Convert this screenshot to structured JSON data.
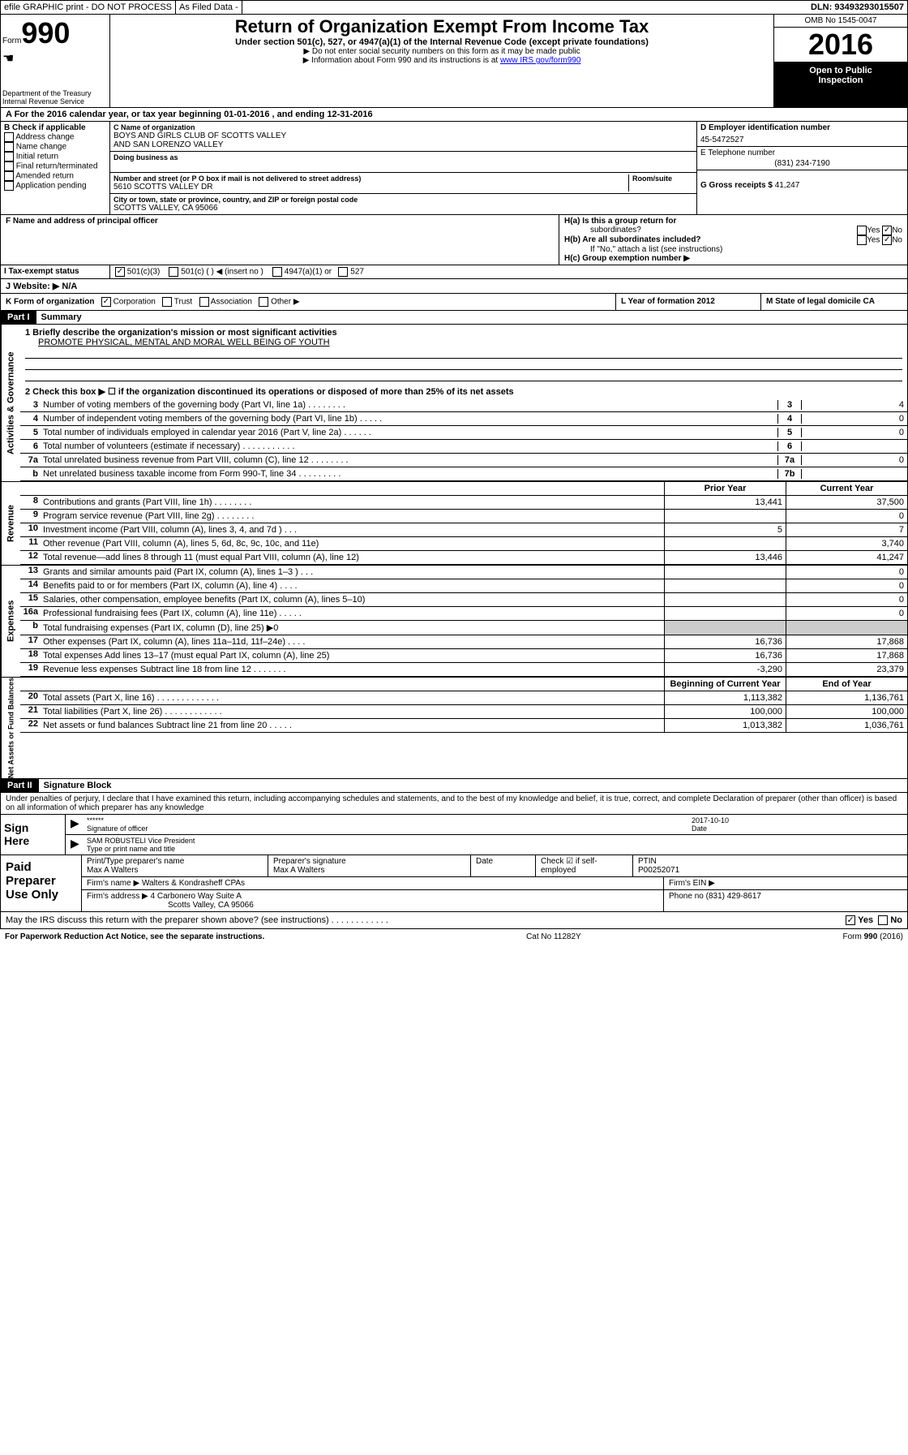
{
  "header": {
    "efile": "efile GRAPHIC print - DO NOT PROCESS",
    "as_filed": "As Filed Data -",
    "dln_label": "DLN:",
    "dln": "93493293015507"
  },
  "form": {
    "form_word": "Form",
    "number": "990",
    "dept1": "Department of the Treasury",
    "dept2": "Internal Revenue Service"
  },
  "title": {
    "main": "Return of Organization Exempt From Income Tax",
    "sub": "Under section 501(c), 527, or 4947(a)(1) of the Internal Revenue Code (except private foundations)",
    "note1": "▶ Do not enter social security numbers on this form as it may be made public",
    "note2": "▶ Information about Form 990 and its instructions is at ",
    "link": "www IRS gov/form990"
  },
  "year_box": {
    "omb": "OMB No 1545-0047",
    "year": "2016",
    "inspect1": "Open to Public",
    "inspect2": "Inspection"
  },
  "sec_a": "A   For the 2016 calendar year, or tax year beginning 01-01-2016   , and ending 12-31-2016",
  "col_b": {
    "title": "B Check if applicable",
    "items": [
      "Address change",
      "Name change",
      "Initial return",
      "Final return/terminated",
      "Amended return",
      "Application pending"
    ]
  },
  "col_c": {
    "name_lbl": "C Name of organization",
    "name1": "BOYS AND GIRLS CLUB OF SCOTTS VALLEY",
    "name2": "AND SAN LORENZO VALLEY",
    "dba_lbl": "Doing business as",
    "addr_lbl": "Number and street (or P O  box if mail is not delivered to street address)",
    "room_lbl": "Room/suite",
    "addr": "5610 SCOTTS VALLEY DR",
    "city_lbl": "City or town, state or province, country, and ZIP or foreign postal code",
    "city": "SCOTTS VALLEY, CA  95066"
  },
  "col_d": {
    "ein_lbl": "D Employer identification number",
    "ein": "45-5472527",
    "tel_lbl": "E Telephone number",
    "tel": "(831) 234-7190",
    "gross_lbl": "G Gross receipts $",
    "gross": "41,247"
  },
  "sec_f": "F   Name and address of principal officer",
  "sec_h": {
    "ha": "H(a)  Is this a group return for",
    "ha2": "subordinates?",
    "hb": "H(b)  Are all subordinates included?",
    "hnote": "If \"No,\" attach a list  (see instructions)",
    "hc": "H(c)  Group exemption number ▶",
    "yes": "Yes",
    "no": "No"
  },
  "sec_i": {
    "lbl": "I   Tax-exempt status",
    "opts": [
      "501(c)(3)",
      "501(c) (  ) ◀ (insert no )",
      "4947(a)(1) or",
      "527"
    ]
  },
  "sec_j": "J   Website: ▶  N/A",
  "sec_k": {
    "lbl": "K Form of organization",
    "opts": [
      "Corporation",
      "Trust",
      "Association",
      "Other ▶"
    ]
  },
  "sec_l": "L Year of formation  2012",
  "sec_m": "M State of legal domicile  CA",
  "part1": {
    "inv": "Part I",
    "title": "Summary"
  },
  "p1_1_lbl": "1  Briefly describe the organization's mission or most significant activities",
  "p1_1_txt": "PROMOTE PHYSICAL, MENTAL AND MORAL WELL BEING OF YOUTH",
  "p1_2": "2   Check this box ▶ ☐  if the organization discontinued its operations or disposed of more than 25% of its net assets",
  "sidebar_gov": "Activities & Governance",
  "sidebar_rev": "Revenue",
  "sidebar_exp": "Expenses",
  "sidebar_net": "Net Assets or Fund Balances",
  "gov_rows": [
    {
      "n": "3",
      "t": "Number of voting members of the governing body (Part VI, line 1a)  .    .    .    .    .    .    .    .",
      "b": "3",
      "v": "4"
    },
    {
      "n": "4",
      "t": "Number of independent voting members of the governing body (Part VI, line 1b)  .    .    .    .    .",
      "b": "4",
      "v": "0"
    },
    {
      "n": "5",
      "t": "Total number of individuals employed in calendar year 2016 (Part V, line 2a)  .    .    .    .    .    .",
      "b": "5",
      "v": "0"
    },
    {
      "n": "6",
      "t": "Total number of volunteers (estimate if necessary)  .    .    .    .    .    .    .    .    .    .    .",
      "b": "6",
      "v": ""
    },
    {
      "n": "7a",
      "t": "Total unrelated business revenue from Part VIII, column (C), line 12  .    .    .    .    .    .    .    .",
      "b": "7a",
      "v": "0"
    },
    {
      "n": "b",
      "t": "Net unrelated business taxable income from Form 990-T, line 34  .    .    .    .    .    .    .    .    .",
      "b": "7b",
      "v": ""
    }
  ],
  "fin_head": {
    "py": "Prior Year",
    "cy": "Current Year"
  },
  "rev_rows": [
    {
      "n": "8",
      "t": "Contributions and grants (Part VIII, line 1h)  .    .    .    .    .    .    .    .",
      "py": "13,441",
      "cy": "37,500"
    },
    {
      "n": "9",
      "t": "Program service revenue (Part VIII, line 2g)  .    .    .    .    .    .    .    .",
      "py": "",
      "cy": "0"
    },
    {
      "n": "10",
      "t": "Investment income (Part VIII, column (A), lines 3, 4, and 7d )  .    .    .",
      "py": "5",
      "cy": "7"
    },
    {
      "n": "11",
      "t": "Other revenue (Part VIII, column (A), lines 5, 6d, 8c, 9c, 10c, and 11e)",
      "py": "",
      "cy": "3,740"
    },
    {
      "n": "12",
      "t": "Total revenue—add lines 8 through 11 (must equal Part VIII, column (A), line 12)",
      "py": "13,446",
      "cy": "41,247"
    }
  ],
  "exp_rows": [
    {
      "n": "13",
      "t": "Grants and similar amounts paid (Part IX, column (A), lines 1–3 )  .    .    .",
      "py": "",
      "cy": "0"
    },
    {
      "n": "14",
      "t": "Benefits paid to or for members (Part IX, column (A), line 4)  .    .    .    .",
      "py": "",
      "cy": "0"
    },
    {
      "n": "15",
      "t": "Salaries, other compensation, employee benefits (Part IX, column (A), lines 5–10)",
      "py": "",
      "cy": "0"
    },
    {
      "n": "16a",
      "t": "Professional fundraising fees (Part IX, column (A), line 11e)  .    .    .    .    .",
      "py": "",
      "cy": "0"
    },
    {
      "n": "b",
      "t": "Total fundraising expenses (Part IX, column (D), line 25) ▶0",
      "py": "",
      "cy": ""
    },
    {
      "n": "17",
      "t": "Other expenses (Part IX, column (A), lines 11a–11d, 11f–24e)  .    .    .    .",
      "py": "16,736",
      "cy": "17,868"
    },
    {
      "n": "18",
      "t": "Total expenses  Add lines 13–17 (must equal Part IX, column (A), line 25)",
      "py": "16,736",
      "cy": "17,868"
    },
    {
      "n": "19",
      "t": "Revenue less expenses  Subtract line 18 from line 12  .    .    .    .    .    .    .",
      "py": "-3,290",
      "cy": "23,379"
    }
  ],
  "net_head": {
    "py": "Beginning of Current Year",
    "cy": "End of Year"
  },
  "net_rows": [
    {
      "n": "20",
      "t": "Total assets (Part X, line 16)  .    .    .    .    .    .    .    .    .    .    .    .    .",
      "py": "1,113,382",
      "cy": "1,136,761"
    },
    {
      "n": "21",
      "t": "Total liabilities (Part X, line 26)  .    .    .    .    .    .    .    .    .    .    .    .",
      "py": "100,000",
      "cy": "100,000"
    },
    {
      "n": "22",
      "t": "Net assets or fund balances  Subtract line 21 from line 20  .    .    .    .    .",
      "py": "1,013,382",
      "cy": "1,036,761"
    }
  ],
  "part2": {
    "inv": "Part II",
    "title": "Signature Block"
  },
  "perjury": "Under penalties of perjury, I declare that I have examined this return, including accompanying schedules and statements, and to the best of my knowledge and belief, it is true, correct, and complete  Declaration of preparer (other than officer) is based on all information of which preparer has any knowledge",
  "sign": {
    "lbl1": "Sign",
    "lbl2": "Here",
    "stars": "******",
    "sig_lbl": "Signature of officer",
    "date": "2017-10-10",
    "date_lbl": "Date",
    "name": "SAM ROBUSTELI  Vice President",
    "name_lbl": "Type or print name and title"
  },
  "paid": {
    "lbl1": "Paid",
    "lbl2": "Preparer",
    "lbl3": "Use Only",
    "prep_name_lbl": "Print/Type preparer's name",
    "prep_name": "Max A Walters",
    "prep_sig_lbl": "Preparer's signature",
    "prep_sig": "Max A Walters",
    "date_lbl": "Date",
    "check_lbl": "Check ☑ if self-employed",
    "ptin_lbl": "PTIN",
    "ptin": "P00252071",
    "firm_name_lbl": "Firm's name      ▶",
    "firm_name": "Walters & Kondrasheff CPAs",
    "firm_ein_lbl": "Firm's EIN ▶",
    "firm_addr_lbl": "Firm's address ▶",
    "firm_addr1": "4 Carbonero Way Suite A",
    "firm_addr2": "Scotts Valley, CA  95066",
    "phone_lbl": "Phone no",
    "phone": "(831) 429-8617"
  },
  "discuss": "May the IRS discuss this return with the preparer shown above? (see instructions)  .    .    .    .    .    .    .    .    .    .    .    .",
  "discuss_yes": "Yes",
  "discuss_no": "No",
  "foot": {
    "pra": "For Paperwork Reduction Act Notice, see the separate instructions.",
    "cat": "Cat  No  11282Y",
    "form": "Form 990 (2016)"
  }
}
